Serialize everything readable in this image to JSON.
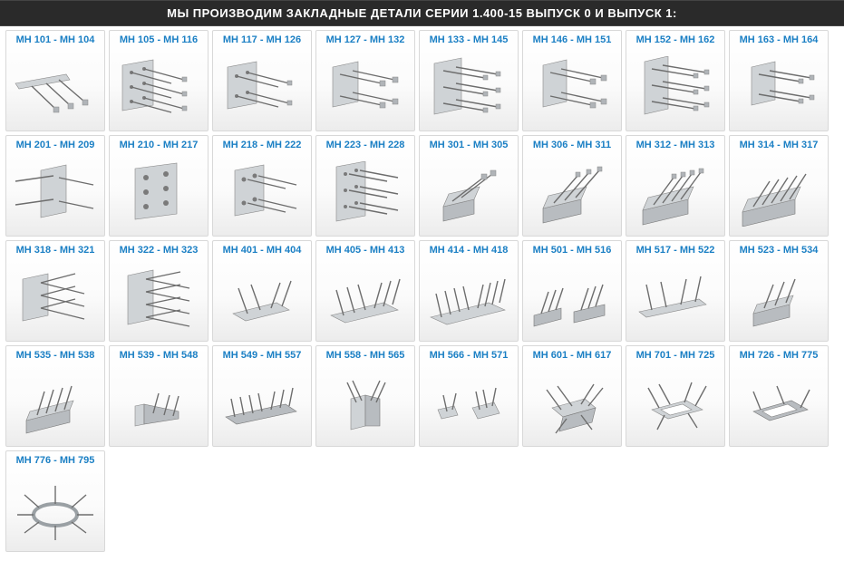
{
  "header": {
    "title": "МЫ ПРОИЗВОДИМ ЗАКЛАДНЫЕ ДЕТАЛИ СЕРИИ 1.400-15 ВЫПУСК 0 И ВЫПУСК 1:"
  },
  "accent_color": "#1a7fc4",
  "cards": [
    {
      "label": "МН 101 - МН 104",
      "shape": "strip-3rods"
    },
    {
      "label": "МН 105 - МН 116",
      "shape": "plate-6rods-dots"
    },
    {
      "label": "МН 117 - МН 126",
      "shape": "plate-4rods-dots"
    },
    {
      "label": "МН 127 - МН 132",
      "shape": "plate-4rods-tips"
    },
    {
      "label": "МН 133 - МН 145",
      "shape": "plate-6rods-tips"
    },
    {
      "label": "МН 146 - МН 151",
      "shape": "plate-4rods-tips-b"
    },
    {
      "label": "МН 152 - МН 162",
      "shape": "plate-6rods-tips-b"
    },
    {
      "label": "МН 163 - МН 164",
      "shape": "plate-4rods-tips-c"
    },
    {
      "label": "МН 201 - МН 209",
      "shape": "plate-4rods-side"
    },
    {
      "label": "МН 210 - МН 217",
      "shape": "plate-6dots"
    },
    {
      "label": "МН 218 - МН 222",
      "shape": "plate-4rods-holes"
    },
    {
      "label": "МН 223 - МН 228",
      "shape": "plate-6rods-holes"
    },
    {
      "label": "МН 301 - МН 305",
      "shape": "angle-2rods"
    },
    {
      "label": "МН 306 - МН 311",
      "shape": "angle-3rods"
    },
    {
      "label": "МН 312 - МН 313",
      "shape": "angle-4rods"
    },
    {
      "label": "МН 314 - МН 317",
      "shape": "angle-5rods"
    },
    {
      "label": "МН 318 - МН 321",
      "shape": "plate-3rods-dbl"
    },
    {
      "label": "МН 322 - МН 323",
      "shape": "plate-4rods-dbl"
    },
    {
      "label": "МН 401 - МН 404",
      "shape": "flat-4rods"
    },
    {
      "label": "МН 405 - МН 413",
      "shape": "flat-6rods"
    },
    {
      "label": "МН 414 - МН 418",
      "shape": "flat-8rods"
    },
    {
      "label": "МН 501 - МН 516",
      "shape": "pair-angle-3"
    },
    {
      "label": "МН 517 - МН 522",
      "shape": "strip-4rods-up"
    },
    {
      "label": "МН 523 - МН 534",
      "shape": "angle-short-3"
    },
    {
      "label": "МН 535 - МН 538",
      "shape": "angle-short-4"
    },
    {
      "label": "МН 539 - МН 548",
      "shape": "bracket-3"
    },
    {
      "label": "МН 549 - МН 557",
      "shape": "tray-many"
    },
    {
      "label": "МН 558 - МН 565",
      "shape": "channel-4"
    },
    {
      "label": "МН 566 - МН 571",
      "shape": "pair-plates"
    },
    {
      "label": "МН 601 - МН 617",
      "shape": "cross-plate"
    },
    {
      "label": "МН 701 - МН 725",
      "shape": "frame-rods"
    },
    {
      "label": "МН 726 - МН 775",
      "shape": "frame-open"
    },
    {
      "label": "МН 776 - МН 795",
      "shape": "ring-rods"
    }
  ]
}
